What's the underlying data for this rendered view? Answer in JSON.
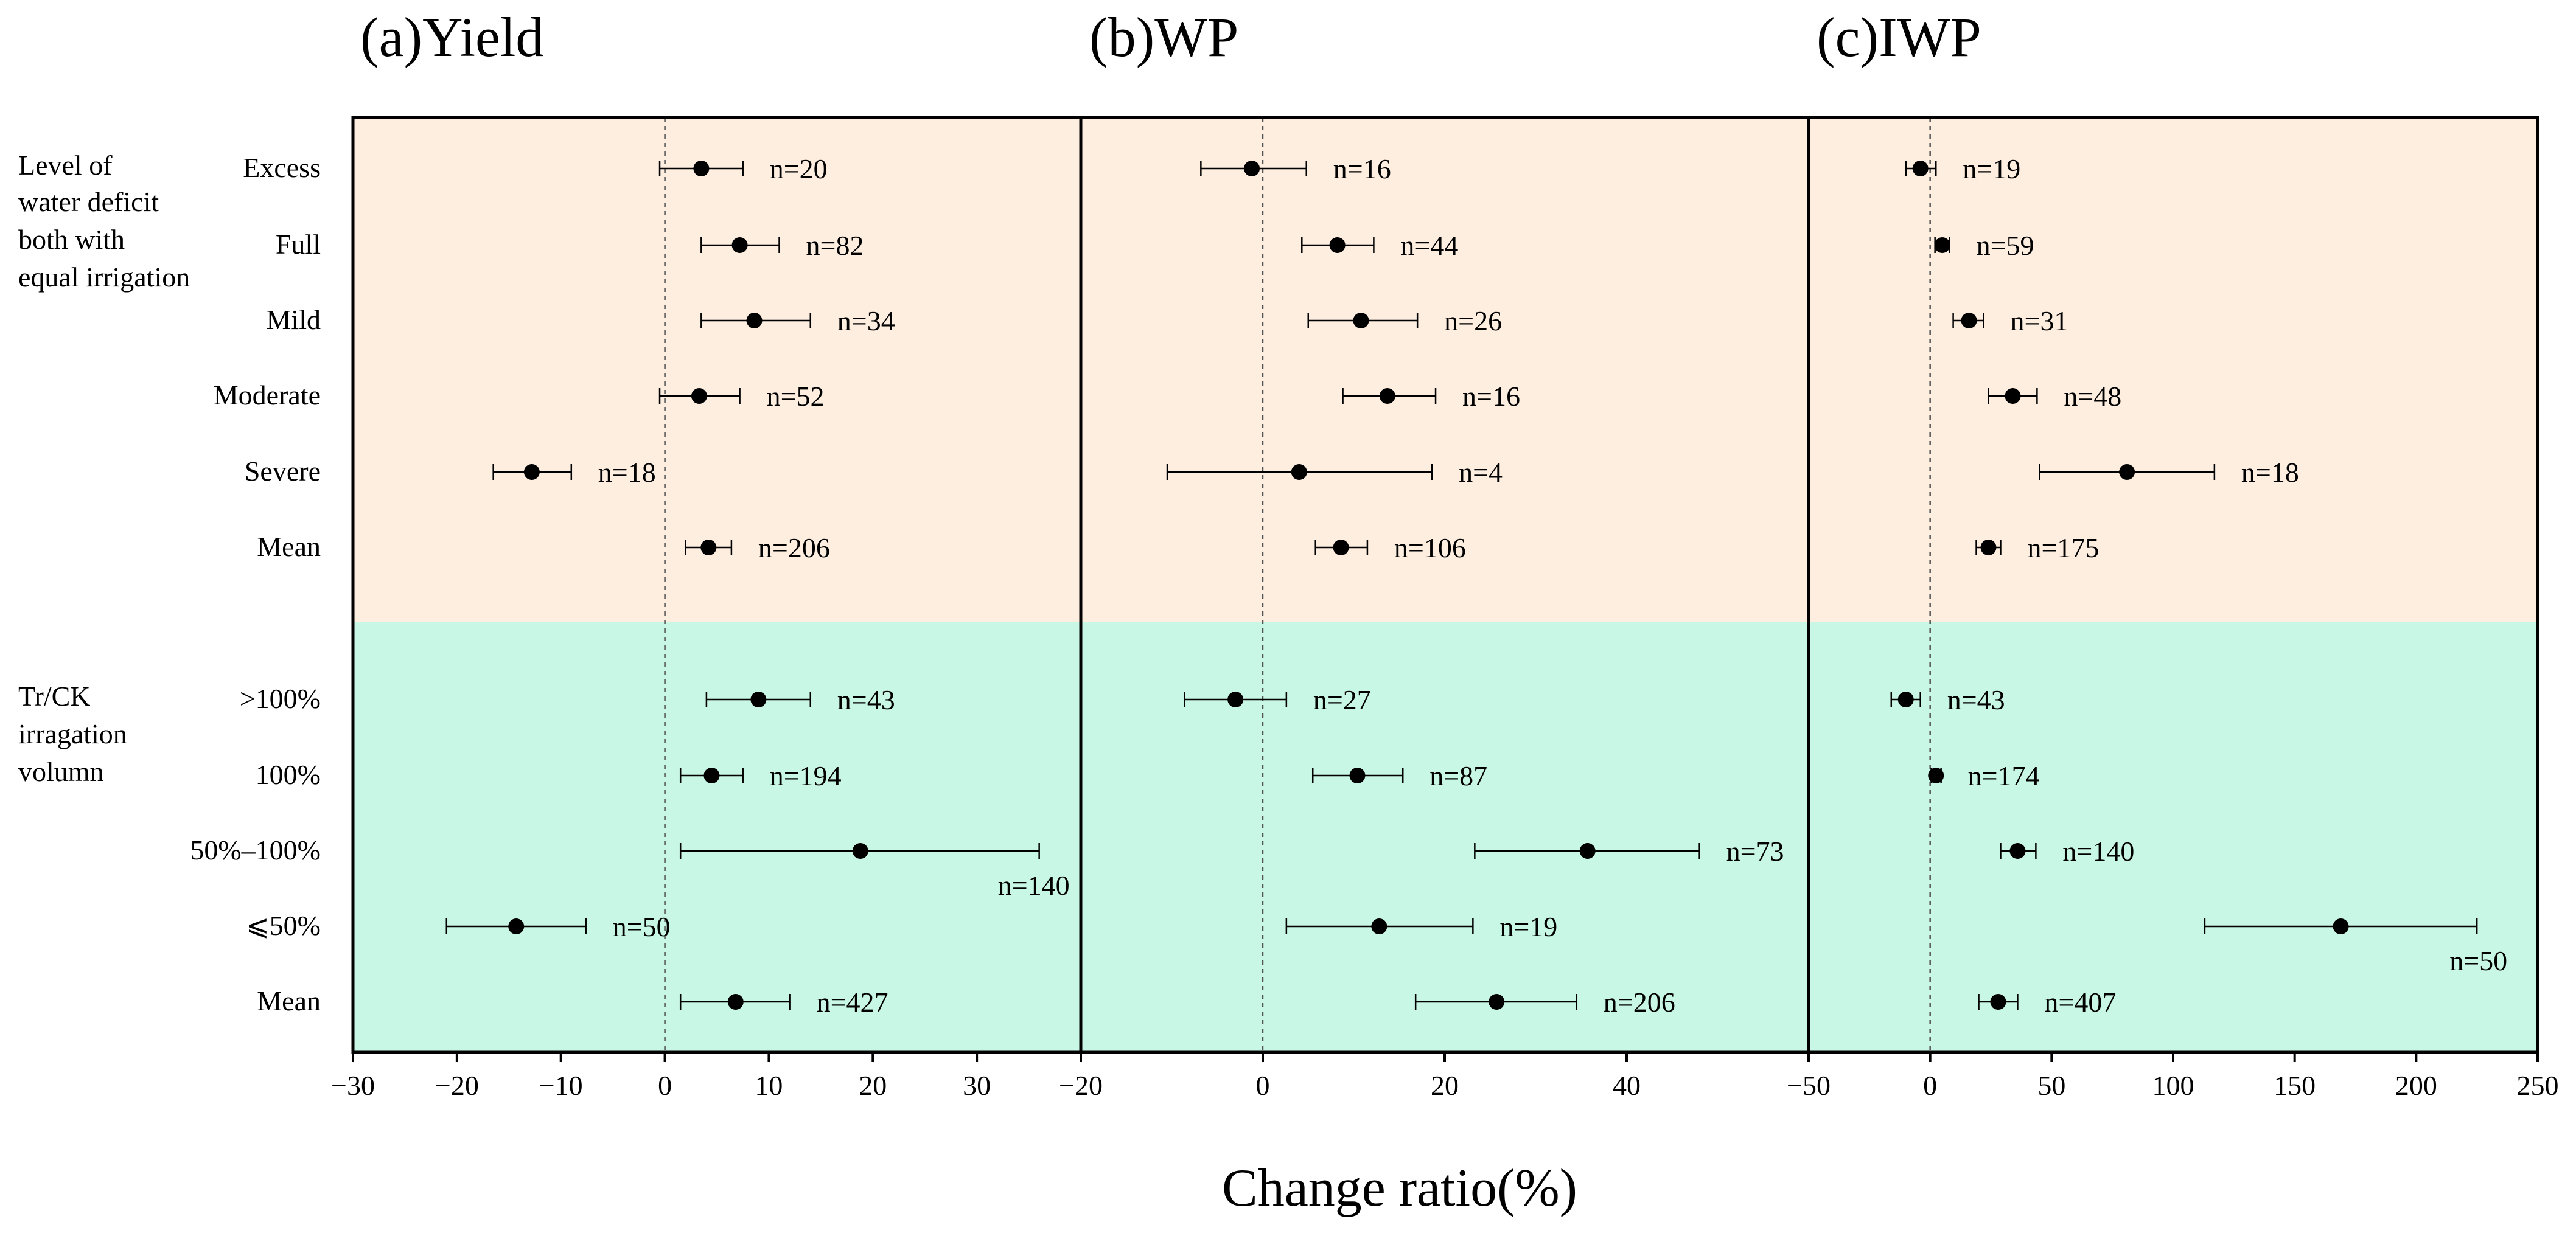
{
  "chart_data": {
    "type": "forest",
    "xlabel": "Change ratio(%)",
    "colors": {
      "top_band": "#fdeee0",
      "bottom_band": "#c9f7e6",
      "marker": "#000000"
    },
    "groups": [
      {
        "label_lines": [
          "Level of",
          "water deficit",
          "both with",
          "equal irrigation"
        ],
        "rows": [
          "Excess",
          "Full",
          "Mild",
          "Moderate",
          "Severe",
          "Mean"
        ]
      },
      {
        "label_lines": [
          "Tr/CK",
          "irragation",
          "volumn"
        ],
        "rows": [
          ">100%",
          "100%",
          "50%–100%",
          "⩽50%",
          "Mean"
        ]
      }
    ],
    "panels": [
      {
        "title": "(a)Yield",
        "xlim": [
          -30,
          40
        ],
        "ticks": [
          -30,
          -20,
          -10,
          0,
          10,
          20,
          30
        ],
        "tick_labels": [
          "−30",
          "−20",
          "−10",
          "0",
          "10",
          "20",
          "30"
        ],
        "points": [
          {
            "row": "Excess",
            "mean": 3.5,
            "lo": -0.5,
            "hi": 7.5,
            "n": "n=20"
          },
          {
            "row": "Full",
            "mean": 7.2,
            "lo": 3.5,
            "hi": 11.0,
            "n": "n=82"
          },
          {
            "row": "Mild",
            "mean": 8.6,
            "lo": 3.5,
            "hi": 14.0,
            "n": "n=34"
          },
          {
            "row": "Moderate",
            "mean": 3.3,
            "lo": -0.5,
            "hi": 7.2,
            "n": "n=52"
          },
          {
            "row": "Severe",
            "mean": -12.8,
            "lo": -16.5,
            "hi": -9.0,
            "n": "n=18"
          },
          {
            "row": "Mean",
            "mean": 4.2,
            "lo": 2.0,
            "hi": 6.4,
            "n": "n=206"
          },
          {
            "row": ">100%",
            "mean": 9.0,
            "lo": 4.0,
            "hi": 14.0,
            "n": "n=43"
          },
          {
            "row": "100%",
            "mean": 4.5,
            "lo": 1.5,
            "hi": 7.5,
            "n": "n=194"
          },
          {
            "row": "50%–100%",
            "mean": 18.8,
            "lo": 1.5,
            "hi": 36.0,
            "n": "n=140"
          },
          {
            "row": "⩽50%",
            "mean": -14.3,
            "lo": -21.0,
            "hi": -7.6,
            "n": "n=50"
          },
          {
            "row": "Mean",
            "mean": 6.8,
            "lo": 1.5,
            "hi": 12.0,
            "n": "n=427"
          }
        ]
      },
      {
        "title": "(b)WP",
        "xlim": [
          -20,
          60
        ],
        "ticks": [
          -20,
          0,
          20,
          40
        ],
        "tick_labels": [
          "−20",
          "0",
          "20",
          "40"
        ],
        "points": [
          {
            "row": "Excess",
            "mean": -1.2,
            "lo": -6.8,
            "hi": 4.8,
            "n": "n=16"
          },
          {
            "row": "Full",
            "mean": 8.2,
            "lo": 4.3,
            "hi": 12.2,
            "n": "n=44"
          },
          {
            "row": "Mild",
            "mean": 10.8,
            "lo": 5.0,
            "hi": 17.0,
            "n": "n=26"
          },
          {
            "row": "Moderate",
            "mean": 13.7,
            "lo": 8.8,
            "hi": 19.0,
            "n": "n=16"
          },
          {
            "row": "Severe",
            "mean": 4.0,
            "lo": -10.5,
            "hi": 18.6,
            "n": "n=4"
          },
          {
            "row": "Mean",
            "mean": 8.6,
            "lo": 5.8,
            "hi": 11.5,
            "n": "n=106"
          },
          {
            "row": ">100%",
            "mean": -3.0,
            "lo": -8.6,
            "hi": 2.6,
            "n": "n=27"
          },
          {
            "row": "100%",
            "mean": 10.4,
            "lo": 5.5,
            "hi": 15.4,
            "n": "n=87"
          },
          {
            "row": "50%–100%",
            "mean": 35.7,
            "lo": 23.3,
            "hi": 48.0,
            "n": "n=73"
          },
          {
            "row": "⩽50%",
            "mean": 12.8,
            "lo": 2.6,
            "hi": 23.1,
            "n": "n=19"
          },
          {
            "row": "Mean",
            "mean": 25.7,
            "lo": 16.8,
            "hi": 34.5,
            "n": "n=206"
          }
        ]
      },
      {
        "title": "(c)IWP",
        "xlim": [
          -50,
          250
        ],
        "ticks": [
          -50,
          0,
          50,
          100,
          150,
          200,
          250
        ],
        "tick_labels": [
          "−50",
          "0",
          "50",
          "100",
          "150",
          "200",
          "250"
        ],
        "points": [
          {
            "row": "Excess",
            "mean": -4.0,
            "lo": -10.0,
            "hi": 2.4,
            "n": "n=19"
          },
          {
            "row": "Full",
            "mean": 5.0,
            "lo": 2.0,
            "hi": 8.0,
            "n": "n=59"
          },
          {
            "row": "Mild",
            "mean": 16.0,
            "lo": 9.5,
            "hi": 22.0,
            "n": "n=31"
          },
          {
            "row": "Moderate",
            "mean": 34.0,
            "lo": 24.0,
            "hi": 44.0,
            "n": "n=48"
          },
          {
            "row": "Severe",
            "mean": 81.0,
            "lo": 45.0,
            "hi": 117.0,
            "n": "n=18"
          },
          {
            "row": "Mean",
            "mean": 24.0,
            "lo": 19.0,
            "hi": 29.0,
            "n": "n=175"
          },
          {
            "row": ">100%",
            "mean": -10.0,
            "lo": -16.0,
            "hi": -4.0,
            "n": "n=43"
          },
          {
            "row": "100%",
            "mean": 2.4,
            "lo": 0.5,
            "hi": 4.5,
            "n": "n=174"
          },
          {
            "row": "50%–100%",
            "mean": 36.0,
            "lo": 29.0,
            "hi": 43.5,
            "n": "n=140"
          },
          {
            "row": "⩽50%",
            "mean": 169.0,
            "lo": 113.0,
            "hi": 225.0,
            "n": "n=50"
          },
          {
            "row": "Mean",
            "mean": 28.0,
            "lo": 20.0,
            "hi": 36.0,
            "n": "n=407"
          }
        ]
      }
    ]
  }
}
